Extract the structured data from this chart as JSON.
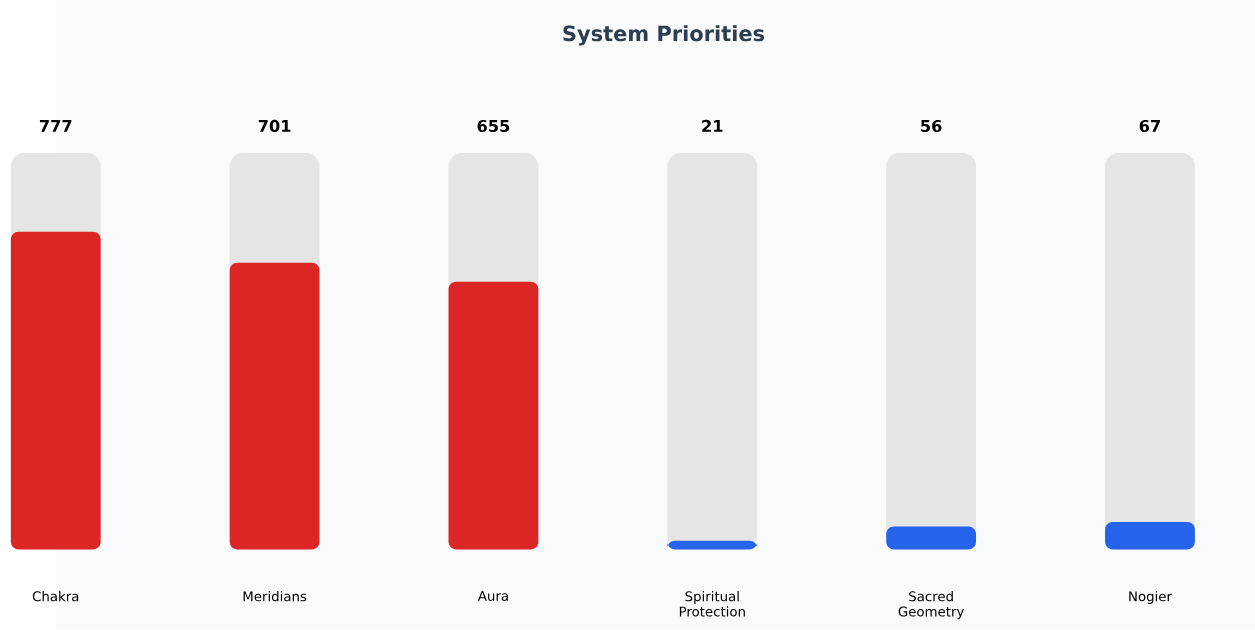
{
  "chart_data": {
    "type": "bar",
    "title": "System Priorities",
    "categories": [
      "Chakra",
      "Meridians",
      "Aura",
      "Spiritual Protection",
      "Sacred Geometry",
      "Nogier"
    ],
    "values": [
      777,
      701,
      655,
      21,
      56,
      67
    ],
    "colors": [
      "#dc2626",
      "#dc2626",
      "#dc2626",
      "#2563eb",
      "#2563eb",
      "#2563eb"
    ],
    "ylim": [
      0,
      970
    ],
    "data_labels": true
  }
}
